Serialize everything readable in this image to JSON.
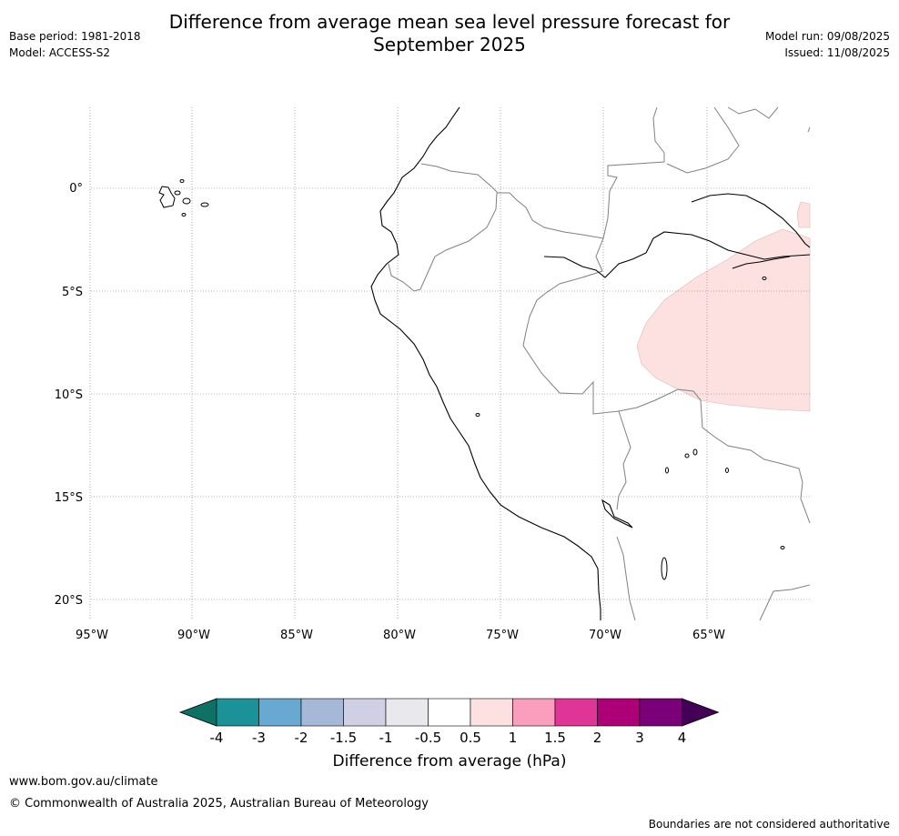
{
  "title_line1": "Difference from average mean sea level pressure forecast for",
  "title_line2": "September 2025",
  "meta": {
    "base_period": "Base period: 1981-2018",
    "model": "Model: ACCESS-S2",
    "model_run": "Model run: 09/08/2025",
    "issued": "Issued: 11/08/2025"
  },
  "map": {
    "lat_labels": [
      "0°",
      "5°S",
      "10°S",
      "15°S",
      "20°S"
    ],
    "lon_labels": [
      "95°W",
      "90°W",
      "85°W",
      "80°W",
      "75°W",
      "70°W",
      "65°W"
    ],
    "extent": {
      "lon_min": -95,
      "lon_max": -60,
      "lat_min": -21,
      "lat_max": 4
    },
    "anomaly_region": {
      "category": "0.5 to 1 hPa",
      "color": "#fde0e0"
    }
  },
  "colorbar": {
    "title": "Difference from average (hPa)",
    "tick_labels": [
      "-4",
      "-3",
      "-2",
      "-1.5",
      "-1",
      "-0.5",
      "0.5",
      "1",
      "1.5",
      "2",
      "3",
      "4"
    ],
    "colors": [
      "#0d7166",
      "#1b9198",
      "#68a9d2",
      "#a6b8d8",
      "#d0d0e4",
      "#e9e8ec",
      "#ffffff",
      "#fde0e0",
      "#f99fbd",
      "#df3597",
      "#ad0077",
      "#7a0078",
      "#440055"
    ]
  },
  "footer": {
    "url": "www.bom.gov.au/climate",
    "copyright": "© Commonwealth of Australia 2025, Australian Bureau of Meteorology",
    "note": "Boundaries are not considered authoritative"
  }
}
